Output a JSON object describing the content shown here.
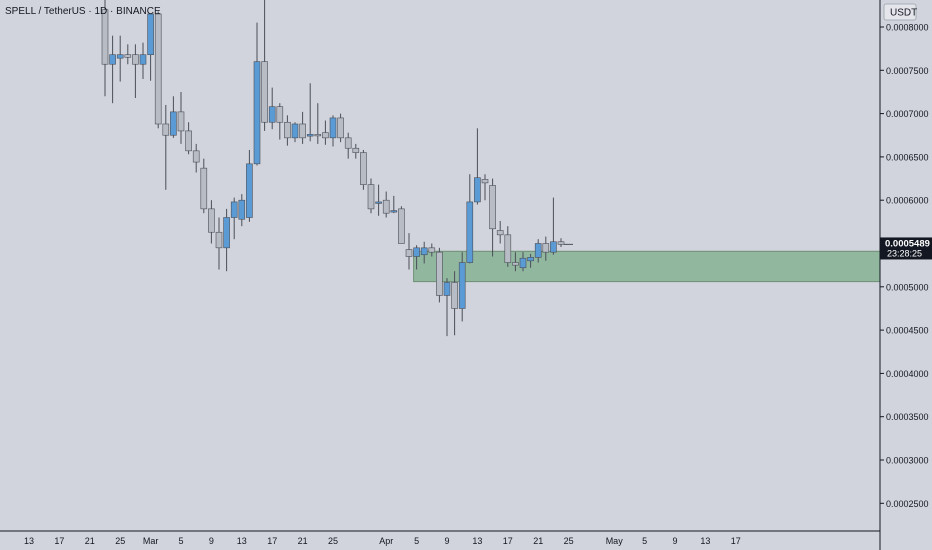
{
  "header": {
    "title": "SPELL / TetherUS · 1D · BINANCE"
  },
  "price_axis": {
    "currency": "USDT",
    "ticks": [
      "0.0008000",
      "0.0007500",
      "0.0007000",
      "0.0006500",
      "0.0006000",
      "0.0005500",
      "0.0005000",
      "0.0004500",
      "0.0004000",
      "0.0003500",
      "0.0003000",
      "0.0002500"
    ],
    "current_price": "0.0005489",
    "countdown": "23:28:25"
  },
  "time_axis": {
    "ticks": [
      "13",
      "17",
      "21",
      "25",
      "Mar",
      "5",
      "9",
      "13",
      "17",
      "21",
      "25",
      "Apr",
      "5",
      "9",
      "13",
      "17",
      "21",
      "25",
      "May",
      "5",
      "9",
      "13",
      "17"
    ]
  },
  "colors": {
    "background": "#d1d4dc",
    "up": "#5b9bd5",
    "down": "#b8bcc4",
    "wick": "#4a4e58",
    "zone": "#5e9e6e",
    "price_label_bg": "#131722"
  },
  "chart_data": {
    "type": "candlestick",
    "symbol": "SPELL / TetherUS",
    "interval": "1D",
    "exchange": "BINANCE",
    "ylim": [
      0.00022,
      0.00082
    ],
    "demand_zone": {
      "low": 0.000506,
      "high": 0.000541,
      "from": "Apr 5"
    },
    "candles": [
      {
        "date": "Feb 23",
        "o": 0.00082,
        "h": 0.00084,
        "l": 0.00072,
        "c": 0.000757
      },
      {
        "date": "Feb 24",
        "o": 0.000757,
        "h": 0.00079,
        "l": 0.000712,
        "c": 0.000768
      },
      {
        "date": "Feb 25",
        "o": 0.000764,
        "h": 0.00079,
        "l": 0.000737,
        "c": 0.000768
      },
      {
        "date": "Feb 26",
        "o": 0.000768,
        "h": 0.00078,
        "l": 0.000757,
        "c": 0.000765
      },
      {
        "date": "Feb 27",
        "o": 0.000768,
        "h": 0.00078,
        "l": 0.000718,
        "c": 0.000757
      },
      {
        "date": "Feb 28",
        "o": 0.000757,
        "h": 0.000782,
        "l": 0.00074,
        "c": 0.000768
      },
      {
        "date": "Mar 1",
        "o": 0.000768,
        "h": 0.000815,
        "l": 0.000738,
        "c": 0.000815
      },
      {
        "date": "Mar 2",
        "o": 0.000815,
        "h": 0.000818,
        "l": 0.000683,
        "c": 0.000688
      },
      {
        "date": "Mar 3",
        "o": 0.000688,
        "h": 0.00071,
        "l": 0.000612,
        "c": 0.000675
      },
      {
        "date": "Mar 4",
        "o": 0.000675,
        "h": 0.00072,
        "l": 0.000672,
        "c": 0.000702
      },
      {
        "date": "Mar 5",
        "o": 0.000702,
        "h": 0.000725,
        "l": 0.000665,
        "c": 0.00068
      },
      {
        "date": "Mar 6",
        "o": 0.00068,
        "h": 0.00069,
        "l": 0.000653,
        "c": 0.000657
      },
      {
        "date": "Mar 7",
        "o": 0.000657,
        "h": 0.000665,
        "l": 0.000632,
        "c": 0.000644
      },
      {
        "date": "Mar 8",
        "o": 0.000637,
        "h": 0.000648,
        "l": 0.000585,
        "c": 0.00059
      },
      {
        "date": "Mar 9",
        "o": 0.00059,
        "h": 0.0006,
        "l": 0.00055,
        "c": 0.000563
      },
      {
        "date": "Mar 10",
        "o": 0.000563,
        "h": 0.00058,
        "l": 0.00052,
        "c": 0.000545
      },
      {
        "date": "Mar 11",
        "o": 0.000545,
        "h": 0.00059,
        "l": 0.000518,
        "c": 0.00058
      },
      {
        "date": "Mar 12",
        "o": 0.00058,
        "h": 0.000603,
        "l": 0.000555,
        "c": 0.000598
      },
      {
        "date": "Mar 13",
        "o": 0.000578,
        "h": 0.000607,
        "l": 0.00057,
        "c": 0.0006
      },
      {
        "date": "Mar 14",
        "o": 0.00058,
        "h": 0.000658,
        "l": 0.000575,
        "c": 0.000642
      },
      {
        "date": "Mar 15",
        "o": 0.000642,
        "h": 0.000805,
        "l": 0.00064,
        "c": 0.00076
      },
      {
        "date": "Mar 16",
        "o": 0.00076,
        "h": 0.00084,
        "l": 0.00068,
        "c": 0.00069
      },
      {
        "date": "Mar 17",
        "o": 0.00069,
        "h": 0.00073,
        "l": 0.000682,
        "c": 0.000708
      },
      {
        "date": "Mar 18",
        "o": 0.000708,
        "h": 0.000712,
        "l": 0.00067,
        "c": 0.00069
      },
      {
        "date": "Mar 19",
        "o": 0.00069,
        "h": 0.000698,
        "l": 0.000663,
        "c": 0.000672
      },
      {
        "date": "Mar 20",
        "o": 0.000672,
        "h": 0.00069,
        "l": 0.000667,
        "c": 0.000688
      },
      {
        "date": "Mar 21",
        "o": 0.000688,
        "h": 0.000702,
        "l": 0.000665,
        "c": 0.000672
      },
      {
        "date": "Mar 22",
        "o": 0.000674,
        "h": 0.000735,
        "l": 0.000668,
        "c": 0.000676
      },
      {
        "date": "Mar 23",
        "o": 0.000676,
        "h": 0.000712,
        "l": 0.000665,
        "c": 0.000675
      },
      {
        "date": "Mar 24",
        "o": 0.000678,
        "h": 0.000692,
        "l": 0.000664,
        "c": 0.000672
      },
      {
        "date": "Mar 25",
        "o": 0.000672,
        "h": 0.000698,
        "l": 0.000662,
        "c": 0.000695
      },
      {
        "date": "Mar 26",
        "o": 0.000695,
        "h": 0.0007,
        "l": 0.000667,
        "c": 0.000672
      },
      {
        "date": "Mar 27",
        "o": 0.000672,
        "h": 0.000678,
        "l": 0.000648,
        "c": 0.00066
      },
      {
        "date": "Mar 28",
        "o": 0.00066,
        "h": 0.000665,
        "l": 0.000648,
        "c": 0.000655
      },
      {
        "date": "Mar 29",
        "o": 0.000655,
        "h": 0.000658,
        "l": 0.000612,
        "c": 0.000618
      },
      {
        "date": "Mar 30",
        "o": 0.000618,
        "h": 0.000625,
        "l": 0.000585,
        "c": 0.00059
      },
      {
        "date": "Mar 31",
        "o": 0.000598,
        "h": 0.000618,
        "l": 0.000582,
        "c": 0.000598
      },
      {
        "date": "Apr 1",
        "o": 0.0006,
        "h": 0.00061,
        "l": 0.00058,
        "c": 0.000585
      },
      {
        "date": "Apr 2",
        "o": 0.000587,
        "h": 0.000605,
        "l": 0.000585,
        "c": 0.000588
      },
      {
        "date": "Apr 3",
        "o": 0.00059,
        "h": 0.000593,
        "l": 0.00055,
        "c": 0.00055
      },
      {
        "date": "Apr 4",
        "o": 0.000543,
        "h": 0.000562,
        "l": 0.00052,
        "c": 0.000535
      },
      {
        "date": "Apr 5",
        "o": 0.000535,
        "h": 0.000548,
        "l": 0.00052,
        "c": 0.000545
      },
      {
        "date": "Apr 6",
        "o": 0.000537,
        "h": 0.000552,
        "l": 0.000527,
        "c": 0.000545
      },
      {
        "date": "Apr 7",
        "o": 0.000545,
        "h": 0.00055,
        "l": 0.000535,
        "c": 0.00054
      },
      {
        "date": "Apr 8",
        "o": 0.00054,
        "h": 0.000545,
        "l": 0.000482,
        "c": 0.00049
      },
      {
        "date": "Apr 9",
        "o": 0.00049,
        "h": 0.00051,
        "l": 0.000443,
        "c": 0.000505
      },
      {
        "date": "Apr 10",
        "o": 0.000505,
        "h": 0.000518,
        "l": 0.000444,
        "c": 0.000475
      },
      {
        "date": "Apr 11",
        "o": 0.000475,
        "h": 0.00054,
        "l": 0.00046,
        "c": 0.000528
      },
      {
        "date": "Apr 12",
        "o": 0.000528,
        "h": 0.00063,
        "l": 0.000527,
        "c": 0.000598
      },
      {
        "date": "Apr 13",
        "o": 0.000598,
        "h": 0.000683,
        "l": 0.000595,
        "c": 0.000626
      },
      {
        "date": "Apr 14",
        "o": 0.000624,
        "h": 0.00063,
        "l": 0.0006,
        "c": 0.00062
      },
      {
        "date": "Apr 15",
        "o": 0.000617,
        "h": 0.000625,
        "l": 0.000535,
        "c": 0.000567
      },
      {
        "date": "Apr 16",
        "o": 0.000565,
        "h": 0.000576,
        "l": 0.00055,
        "c": 0.00056
      },
      {
        "date": "Apr 17",
        "o": 0.00056,
        "h": 0.00057,
        "l": 0.000523,
        "c": 0.000528
      },
      {
        "date": "Apr 18",
        "o": 0.000528,
        "h": 0.00054,
        "l": 0.000518,
        "c": 0.000525
      },
      {
        "date": "Apr 19",
        "o": 0.000522,
        "h": 0.00054,
        "l": 0.000518,
        "c": 0.000533
      },
      {
        "date": "Apr 20",
        "o": 0.00053,
        "h": 0.000538,
        "l": 0.000522,
        "c": 0.000534
      },
      {
        "date": "Apr 21",
        "o": 0.000534,
        "h": 0.000555,
        "l": 0.000528,
        "c": 0.00055
      },
      {
        "date": "Apr 22",
        "o": 0.00055,
        "h": 0.000558,
        "l": 0.00053,
        "c": 0.00054
      },
      {
        "date": "Apr 23",
        "o": 0.00054,
        "h": 0.000603,
        "l": 0.000537,
        "c": 0.000552
      },
      {
        "date": "Apr 24",
        "o": 0.000552,
        "h": 0.000556,
        "l": 0.000546,
        "c": 0.000549
      }
    ]
  }
}
